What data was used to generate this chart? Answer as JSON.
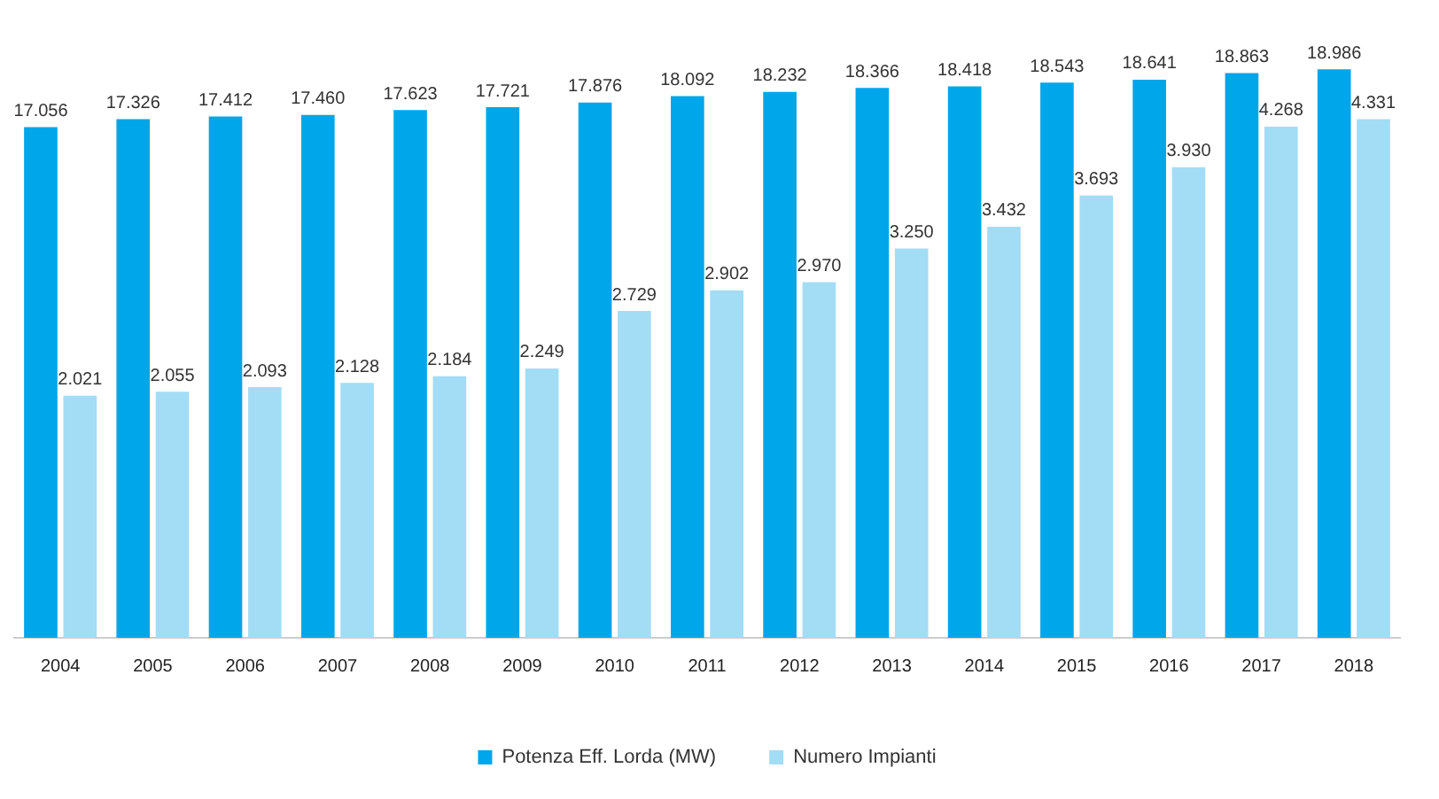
{
  "chart_data": {
    "type": "bar",
    "categories": [
      "2004",
      "2005",
      "2006",
      "2007",
      "2008",
      "2009",
      "2010",
      "2011",
      "2012",
      "2013",
      "2014",
      "2015",
      "2016",
      "2017",
      "2018"
    ],
    "series": [
      {
        "name": "Potenza Eff. Lorda (MW)",
        "color": "#00a6ea",
        "values": [
          17056,
          17326,
          17412,
          17460,
          17623,
          17721,
          17876,
          18092,
          18232,
          18366,
          18418,
          18543,
          18641,
          18863,
          18986
        ],
        "value_labels": [
          "17.056",
          "17.326",
          "17.412",
          "17.460",
          "17.623",
          "17.721",
          "17.876",
          "18.092",
          "18.232",
          "18.366",
          "18.418",
          "18.543",
          "18.641",
          "18.863",
          "18.986"
        ]
      },
      {
        "name": "Numero Impianti",
        "color": "#a3dcf5",
        "axis": "y2",
        "values": [
          2021,
          2055,
          2093,
          2128,
          2184,
          2249,
          2729,
          2902,
          2970,
          3250,
          3432,
          3693,
          3930,
          4268,
          4331
        ],
        "value_labels": [
          "2.021",
          "2.055",
          "2.093",
          "2.128",
          "2.184",
          "2.249",
          "2.729",
          "2.902",
          "2.970",
          "3.250",
          "3.432",
          "3.693",
          "3.930",
          "4.268",
          "4.331"
        ]
      }
    ],
    "tick_labels": "x",
    "grid": false,
    "legend": "bottom"
  }
}
